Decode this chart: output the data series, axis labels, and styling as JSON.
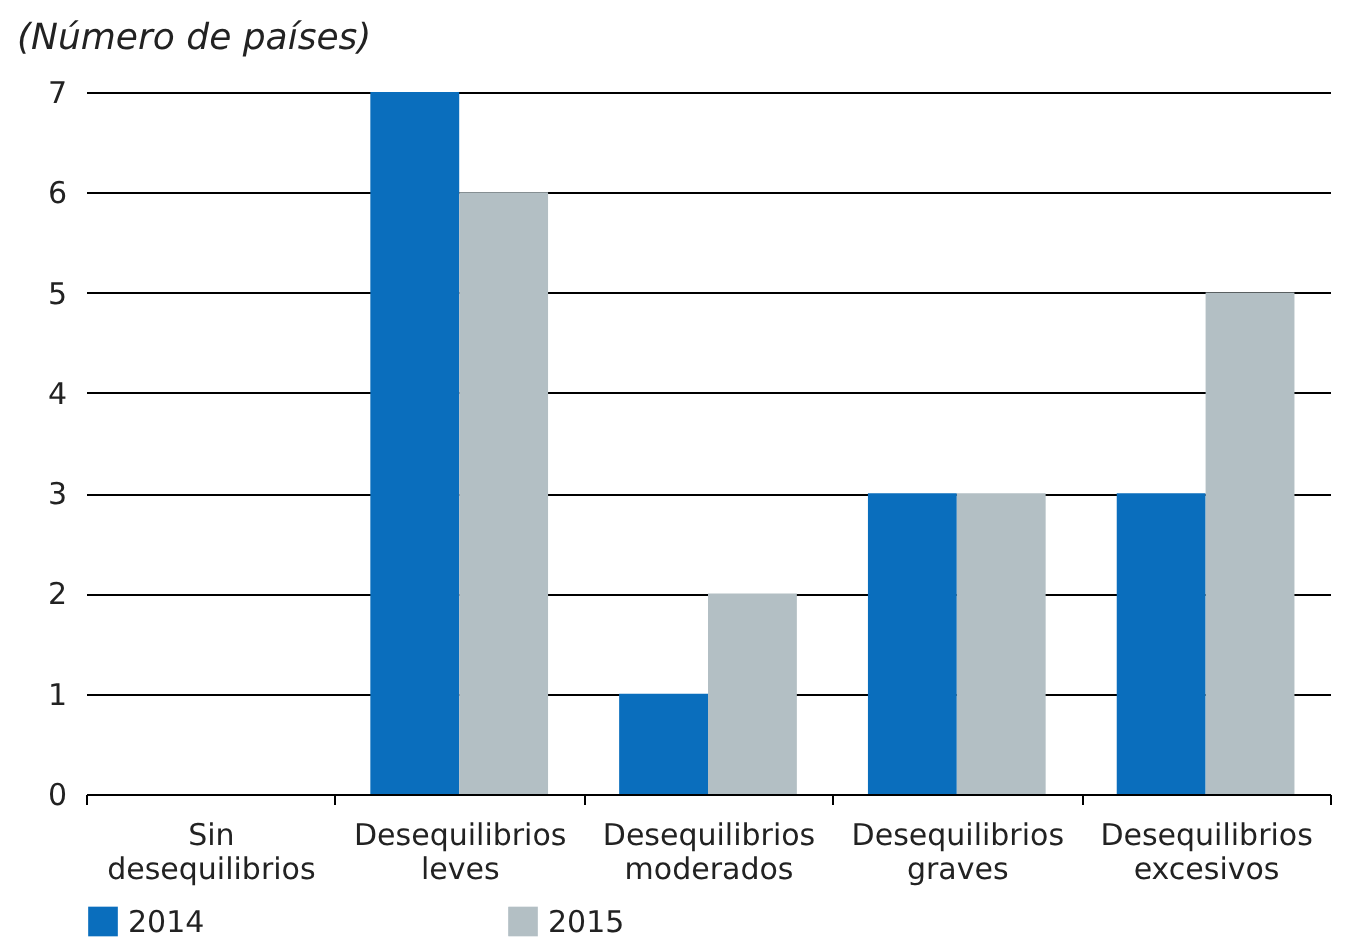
{
  "chart_data": {
    "type": "bar",
    "ylabel": "(Número de países)",
    "categories": [
      "Sin desequilibrios",
      "Desequilibrios leves",
      "Desequilibrios moderados",
      "Desequilibrios graves",
      "Desequilibrios excesivos"
    ],
    "series": [
      {
        "name": "2014",
        "color": "#0a6ebd",
        "values": [
          0,
          7,
          1,
          3,
          3
        ]
      },
      {
        "name": "2015",
        "color": "#b3bfc4",
        "values": [
          0,
          6,
          2,
          3,
          5
        ]
      }
    ],
    "ylim": [
      0,
      7
    ],
    "yticks": [
      0,
      1,
      2,
      3,
      4,
      5,
      6,
      7
    ],
    "grid": "y",
    "legend": "bottom"
  }
}
